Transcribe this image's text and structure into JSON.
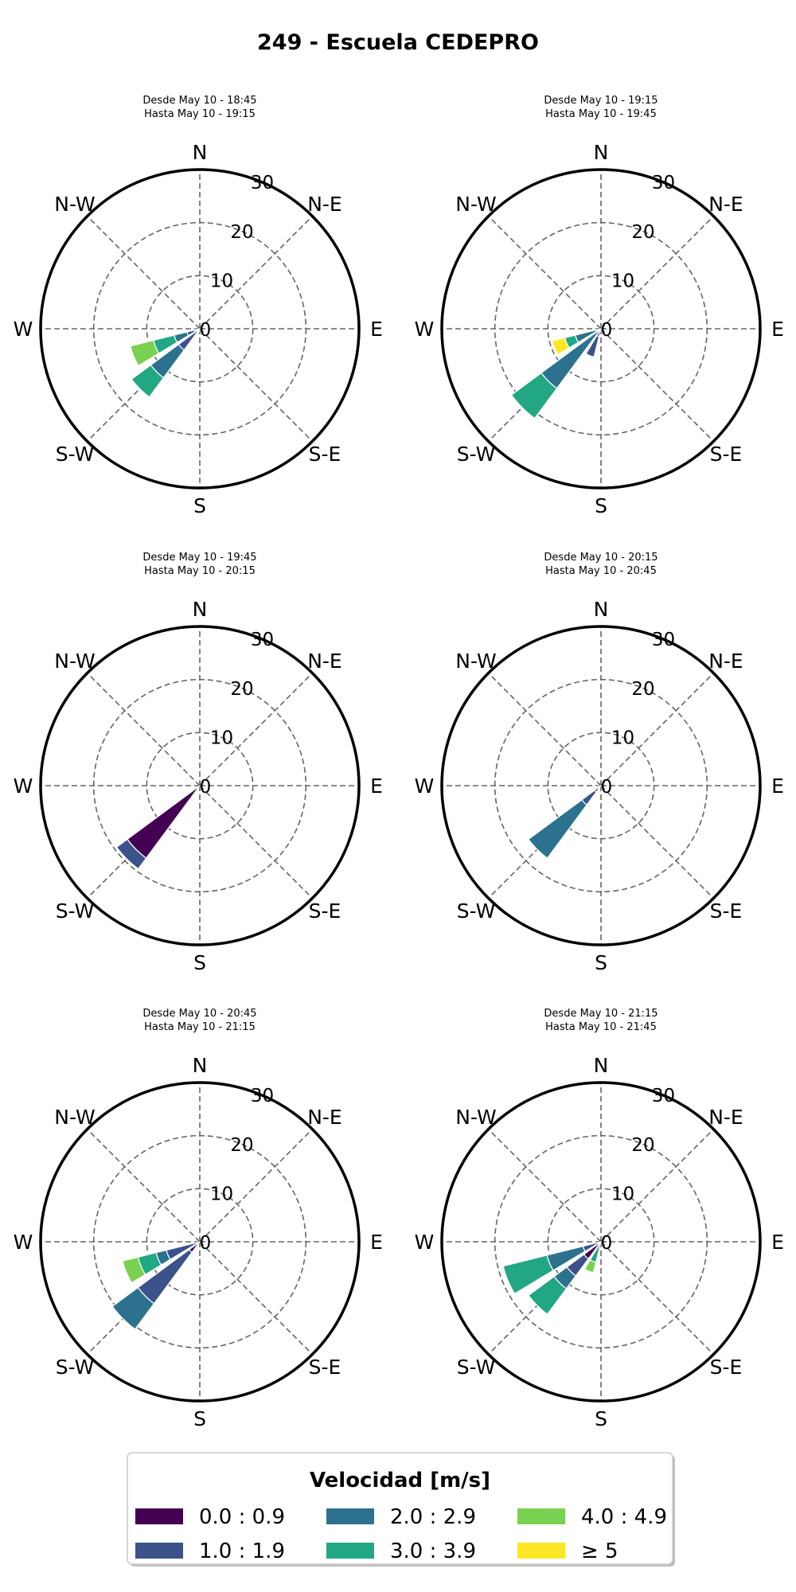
{
  "title": "249 - Escuela CEDEPRO",
  "directions": [
    "N",
    "N-E",
    "E",
    "S-E",
    "S",
    "S-W",
    "W",
    "N-W"
  ],
  "radial_ticks": [
    "0",
    "10",
    "20",
    "30"
  ],
  "chart_data": {
    "type": "wind-rose",
    "title": "249 - Escuela CEDEPRO",
    "rmax": 30,
    "rticks": [
      0,
      10,
      20,
      30
    ],
    "legend": {
      "title": "Velocidad [m/s]",
      "placement": "bottom-center",
      "bins": [
        {
          "label": "0.0 : 0.9",
          "color": "#440154"
        },
        {
          "label": "1.0 : 1.9",
          "color": "#3b528b"
        },
        {
          "label": "2.0 : 2.9",
          "color": "#2c728e"
        },
        {
          "label": "3.0 : 3.9",
          "color": "#21a784"
        },
        {
          "label": "4.0 : 4.9",
          "color": "#7ad151"
        },
        {
          "label": "≥  5",
          "color": "#fde725"
        }
      ]
    },
    "panels": [
      {
        "subtitle": [
          "Desde May 10 - 18:45",
          "Hasta May 10 - 19:15"
        ],
        "wedges": [
          {
            "dir": 225,
            "stack": [
              0,
              5,
              6.5,
              4.5,
              0,
              0
            ]
          },
          {
            "dir": 247.5,
            "stack": [
              1,
              1.5,
              2.5,
              4,
              4.5,
              0
            ]
          },
          {
            "dir": 202.5,
            "stack": [
              0,
              0,
              0,
              0,
              1.2,
              0
            ]
          }
        ]
      },
      {
        "subtitle": [
          "Desde May 10 - 19:15",
          "Hasta May 10 - 19:45"
        ],
        "wedges": [
          {
            "dir": 225,
            "stack": [
              0,
              0,
              14,
              7,
              0,
              0
            ]
          },
          {
            "dir": 202.5,
            "stack": [
              1.5,
              4,
              0,
              0,
              0,
              0
            ]
          },
          {
            "dir": 247.5,
            "stack": [
              0,
              1,
              4,
              2,
              0,
              2.5
            ]
          }
        ]
      },
      {
        "subtitle": [
          "Desde May 10 - 19:45",
          "Hasta May 10 - 20:15"
        ],
        "wedges": [
          {
            "dir": 225,
            "stack": [
              17,
              2.5,
              0,
              0,
              0,
              0
            ]
          }
        ]
      },
      {
        "subtitle": [
          "Desde May 10 - 20:15",
          "Hasta May 10 - 20:45"
        ],
        "wedges": [
          {
            "dir": 225,
            "stack": [
              1.5,
              3,
              12.5,
              0,
              0,
              0
            ]
          },
          {
            "dir": 247.5,
            "stack": [
              0,
              0,
              0.8,
              0,
              0,
              0
            ]
          }
        ]
      },
      {
        "subtitle": [
          "Desde May 10 - 20:45",
          "Hasta May 10 - 21:15"
        ],
        "wedges": [
          {
            "dir": 225,
            "stack": [
              2.5,
              12,
              6,
              0,
              0,
              0
            ]
          },
          {
            "dir": 247.5,
            "stack": [
              0,
              6.5,
              2,
              3.5,
              3,
              0
            ]
          }
        ]
      },
      {
        "subtitle": [
          "Desde May 10 - 21:15",
          "Hasta May 10 - 21:45"
        ],
        "wedges": [
          {
            "dir": 225,
            "stack": [
              0,
              0,
              0,
              0,
              0,
              0
            ]
          },
          {
            "dir": 247.5,
            "stack": [
              0,
              3.5,
              7,
              8.5,
              0,
              0
            ]
          },
          {
            "dir": 225,
            "stack": [
              4,
              4,
              3,
              6,
              0,
              0
            ]
          },
          {
            "dir": 202.5,
            "stack": [
              0,
              0,
              0,
              4,
              2,
              0
            ]
          }
        ]
      }
    ]
  }
}
